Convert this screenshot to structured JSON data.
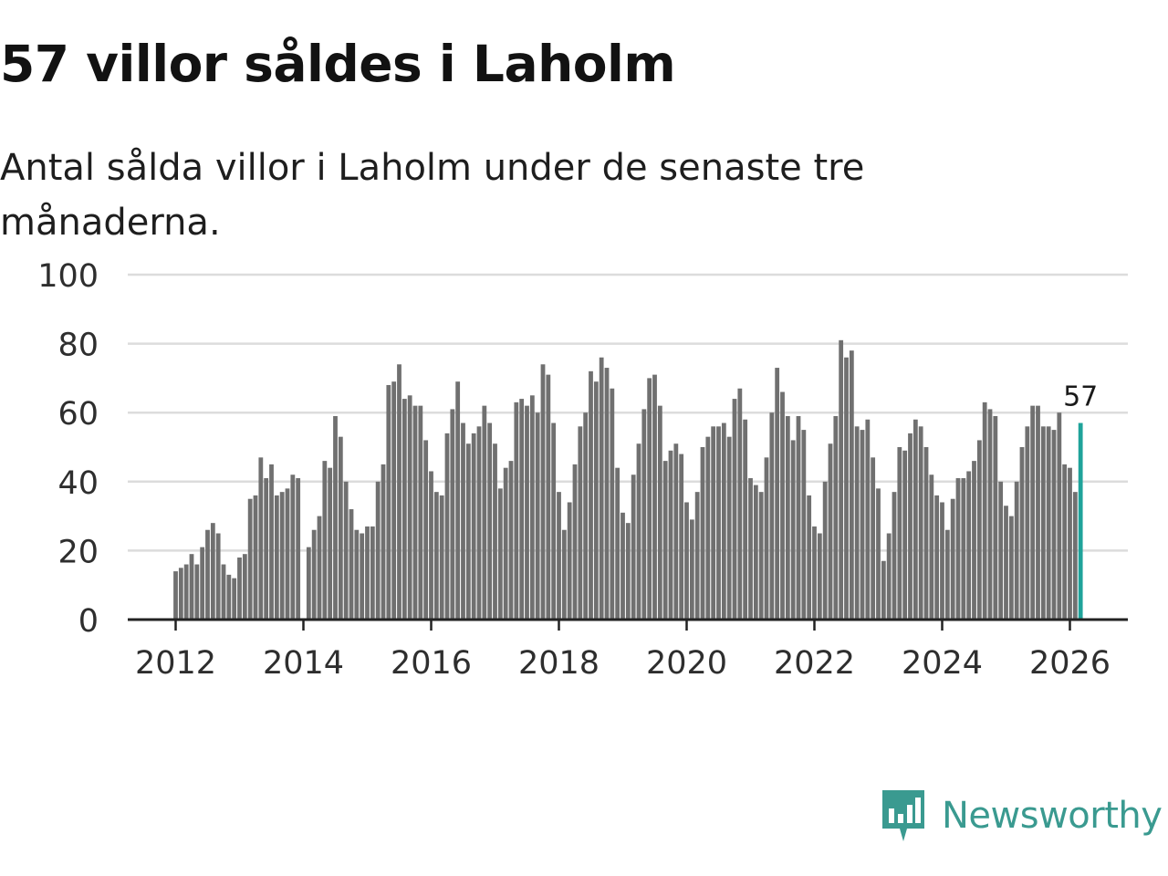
{
  "title": "57 villor såldes i Laholm",
  "subtitle": "Antal sålda villor i Laholm under de senaste tre månaderna.",
  "brand": {
    "name": "Newsworthy",
    "icon": "newsworthy-logo-icon",
    "color": "#3a9a90"
  },
  "chart_data": {
    "type": "bar",
    "title": "57 villor såldes i Laholm",
    "subtitle": "Antal sålda villor i Laholm under de senaste tre månaderna.",
    "xlabel": "",
    "ylabel": "",
    "ylim": [
      0,
      100
    ],
    "yticks": [
      0,
      20,
      40,
      60,
      80,
      100
    ],
    "xticks": [
      "2012",
      "2014",
      "2016",
      "2018",
      "2020",
      "2022",
      "2024",
      "2026"
    ],
    "x_start": "2012-01",
    "frequency": "monthly",
    "bar_color": "#707070",
    "highlight_color": "#1fa39a",
    "highlight_label": "57",
    "grid": true,
    "values": [
      14,
      15,
      16,
      19,
      16,
      21,
      26,
      28,
      25,
      16,
      13,
      12,
      18,
      19,
      35,
      36,
      47,
      41,
      45,
      36,
      37,
      38,
      42,
      41,
      null,
      21,
      26,
      30,
      46,
      44,
      59,
      53,
      40,
      32,
      26,
      25,
      27,
      27,
      40,
      45,
      68,
      69,
      74,
      64,
      65,
      62,
      62,
      52,
      43,
      37,
      36,
      54,
      61,
      69,
      57,
      51,
      54,
      56,
      62,
      57,
      51,
      38,
      44,
      46,
      63,
      64,
      62,
      65,
      60,
      74,
      71,
      57,
      37,
      26,
      34,
      45,
      56,
      60,
      72,
      69,
      76,
      73,
      67,
      44,
      31,
      28,
      42,
      51,
      61,
      70,
      71,
      62,
      46,
      49,
      51,
      48,
      34,
      29,
      37,
      50,
      53,
      56,
      56,
      57,
      53,
      64,
      67,
      58,
      41,
      39,
      37,
      47,
      60,
      73,
      66,
      59,
      52,
      59,
      55,
      36,
      27,
      25,
      40,
      51,
      59,
      81,
      76,
      78,
      56,
      55,
      58,
      47,
      38,
      17,
      25,
      37,
      50,
      49,
      54,
      58,
      56,
      50,
      42,
      36,
      34,
      26,
      35,
      41,
      41,
      43,
      46,
      52,
      63,
      61,
      59,
      40,
      33,
      30,
      40,
      50,
      56,
      62,
      62,
      56,
      56,
      55,
      60,
      45,
      44,
      37,
      57
    ]
  }
}
